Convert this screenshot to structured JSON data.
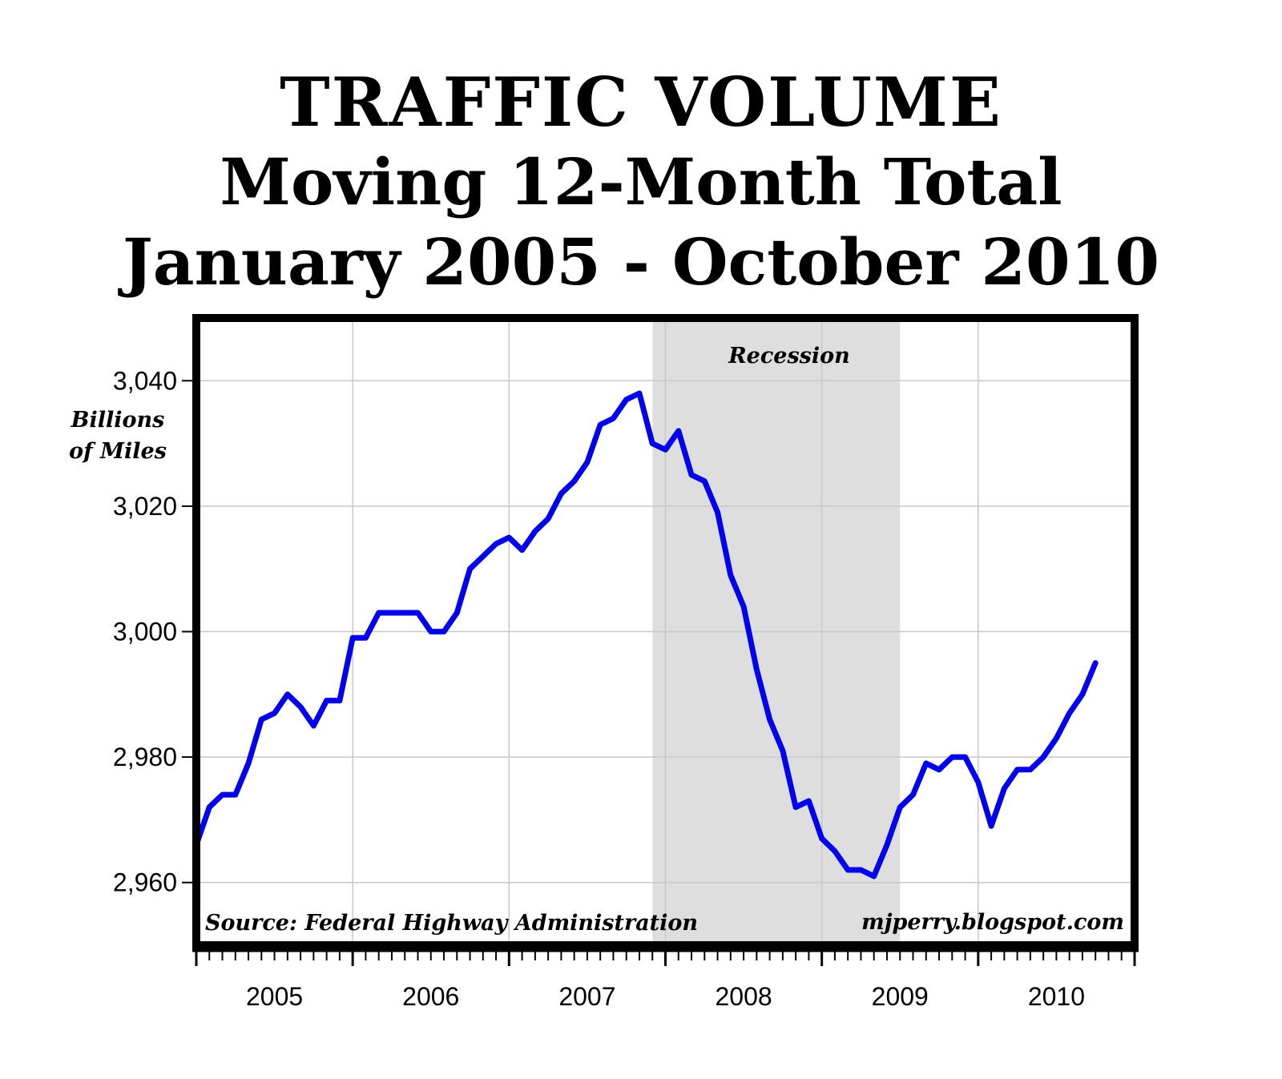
{
  "chart_data": {
    "type": "line",
    "title": [
      "TRAFFIC  VOLUME",
      "Moving 12-Month Total",
      "January 2005 - October 2010"
    ],
    "ylabel": [
      "Billions",
      "of Miles"
    ],
    "xlabel": "",
    "ylim": [
      2950,
      3050
    ],
    "xlim": [
      2005.0,
      2011.0
    ],
    "yticks": [
      2960,
      2980,
      3000,
      3020,
      3040
    ],
    "ytick_labels": [
      "2,960",
      "2,980",
      "3,000",
      "3,020",
      "3,040"
    ],
    "xtick_labels": [
      "2005",
      "2006",
      "2007",
      "2008",
      "2009",
      "2010"
    ],
    "grid": true,
    "line_color": "#0000ee",
    "recession": {
      "label": "Recession",
      "start": 2007.917,
      "end": 2009.5,
      "color": "#dedede"
    },
    "annotations": {
      "source": "Source: Federal Highway Administration",
      "website": "mjperry.blogspot.com"
    },
    "series": [
      {
        "name": "Traffic Volume (Moving 12-Month Total)",
        "start_year": 2005,
        "start_month": 1,
        "values": [
          2966,
          2972,
          2974,
          2974,
          2979,
          2986,
          2987,
          2990,
          2988,
          2985,
          2989,
          2989,
          2999,
          2999,
          3003,
          3003,
          3003,
          3003,
          3000,
          3000,
          3003,
          3010,
          3012,
          3014,
          3015,
          3013,
          3016,
          3018,
          3022,
          3024,
          3027,
          3033,
          3034,
          3037,
          3038,
          3030,
          3029,
          3032,
          3025,
          3024,
          3019,
          3009,
          3004,
          2994,
          2986,
          2981,
          2972,
          2973,
          2967,
          2965,
          2962,
          2962,
          2961,
          2966,
          2972,
          2974,
          2979,
          2978,
          2980,
          2980,
          2976,
          2969,
          2975,
          2978,
          2978,
          2980,
          2983,
          2987,
          2990,
          2995
        ]
      }
    ]
  }
}
